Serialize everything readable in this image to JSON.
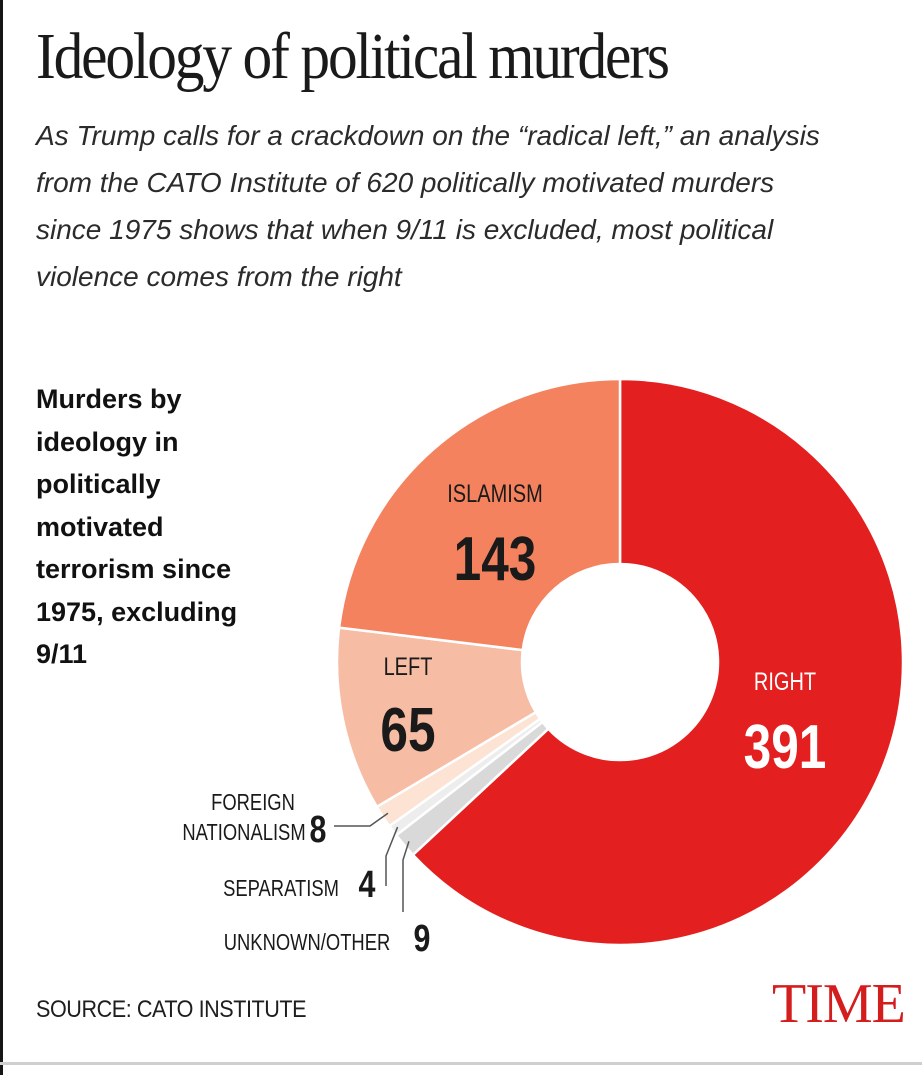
{
  "header": {
    "title": "Ideology of political murders",
    "subtitle": "As Trump calls for a crackdown on the “radical left,” an analysis from the CATO Institute of 620 politically motivated murders since 1975 shows that when 9/11 is excluded, most political violence comes from the right"
  },
  "panel_label": "Murders by ideology in politically motivated terrorism since 1975, excluding 9/11",
  "chart_data": {
    "type": "pie",
    "variant": "donut",
    "title": "Murders by ideology in politically motivated terrorism since 1975, excluding 9/11",
    "total": 620,
    "slices": [
      {
        "label": "RIGHT",
        "value": 391,
        "color": "#e41f1f"
      },
      {
        "label": "UNKNOWN/OTHER",
        "value": 9,
        "color": "#d9d9d9"
      },
      {
        "label": "SEPARATISM",
        "value": 4,
        "color": "#ededed"
      },
      {
        "label": "FOREIGN NATIONALISM",
        "value": 8,
        "color": "#fce3d4"
      },
      {
        "label": "LEFT",
        "value": 65,
        "color": "#f6bca4"
      },
      {
        "label": "ISLAMISM",
        "value": 143,
        "color": "#f4825e"
      }
    ]
  },
  "source": "SOURCE: CATO INSTITUTE",
  "logo": "TIME"
}
